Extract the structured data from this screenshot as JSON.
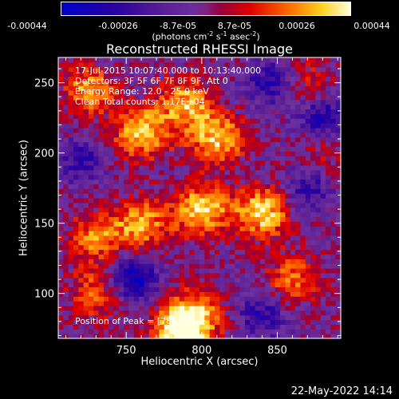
{
  "colorbar": {
    "tick_labels": [
      "-0.00044",
      "-0.00026",
      "-8.7e-05",
      "8.7e-05",
      "0.00026",
      "0.00044"
    ],
    "unit_main": "(photons cm",
    "unit_exp1": "-2",
    "unit_mid": " s",
    "unit_exp2": "-1",
    "unit_mid2": " asec",
    "unit_exp3": "-2",
    "unit_end": ")"
  },
  "title": "Reconstructed RHESSI Image",
  "annotations": {
    "time_range": "17-Jul-2015 10:07:40.000 to 10:13:40.000",
    "detectors": "Detectors: 3F 5F 6F 7F 8F 9F, Att 0",
    "energy": "Energy Range: 12.0 - 25.0 keV",
    "clean": "Clean    Total counts: 1.17E+04",
    "peak": "Position of Peak = [785,72]"
  },
  "timestamp": "22-May-2022 14:14",
  "chart_data": {
    "type": "heatmap",
    "title": "Reconstructed RHESSI Image",
    "xlabel": "Heliocentric X (arcsec)",
    "ylabel": "Heliocentric Y (arcsec)",
    "xlim": [
      705,
      892
    ],
    "ylim": [
      68,
      268
    ],
    "xticks": [
      750,
      800,
      850
    ],
    "yticks": [
      100,
      150,
      200,
      250
    ],
    "colorbar_range": [
      -0.00044,
      0.00044
    ],
    "peak_position": [
      785,
      72
    ],
    "hot_regions": [
      {
        "x": 760,
        "y": 215,
        "level": 0.9
      },
      {
        "x": 790,
        "y": 235,
        "level": 0.8
      },
      {
        "x": 725,
        "y": 245,
        "level": 0.7
      },
      {
        "x": 810,
        "y": 210,
        "level": 0.85
      },
      {
        "x": 840,
        "y": 158,
        "level": 0.95
      },
      {
        "x": 800,
        "y": 160,
        "level": 0.9
      },
      {
        "x": 760,
        "y": 150,
        "level": 0.75
      },
      {
        "x": 730,
        "y": 140,
        "level": 0.65
      },
      {
        "x": 785,
        "y": 72,
        "level": 1.0
      },
      {
        "x": 795,
        "y": 85,
        "level": 0.8
      },
      {
        "x": 730,
        "y": 100,
        "level": 0.55
      },
      {
        "x": 860,
        "y": 110,
        "level": 0.6
      },
      {
        "x": 870,
        "y": 250,
        "level": 0.35
      },
      {
        "x": 880,
        "y": 200,
        "level": 0.3
      }
    ],
    "cold_regions": [
      {
        "x": 755,
        "y": 110,
        "level": -0.85
      },
      {
        "x": 880,
        "y": 225,
        "level": -0.7
      },
      {
        "x": 845,
        "y": 250,
        "level": -0.6
      },
      {
        "x": 870,
        "y": 175,
        "level": -0.55
      },
      {
        "x": 840,
        "y": 85,
        "level": -0.6
      },
      {
        "x": 720,
        "y": 195,
        "level": -0.5
      }
    ]
  }
}
